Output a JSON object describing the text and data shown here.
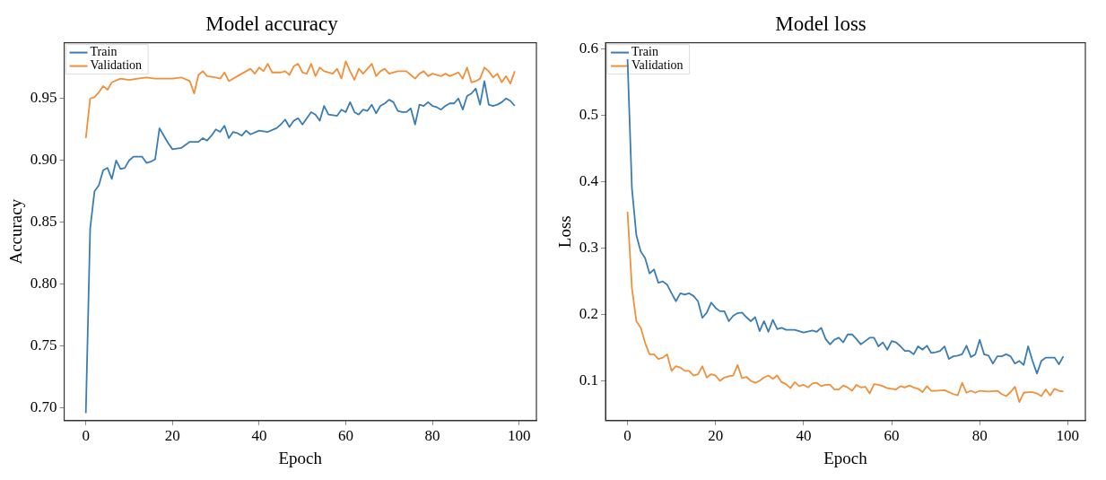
{
  "chart_data": [
    {
      "type": "line",
      "title": "Model accuracy",
      "xlabel": "Epoch",
      "ylabel": "Accuracy",
      "xlim": [
        -5,
        104
      ],
      "ylim": [
        0.69,
        0.995
      ],
      "xticks": [
        0,
        20,
        40,
        60,
        80,
        100
      ],
      "yticks": [
        {
          "value": 0.7,
          "label": "0.70"
        },
        {
          "value": 0.75,
          "label": "0.75"
        },
        {
          "value": 0.8,
          "label": "0.80"
        },
        {
          "value": 0.85,
          "label": "0.85"
        },
        {
          "value": 0.9,
          "label": "0.90"
        },
        {
          "value": 0.95,
          "label": "0.95"
        }
      ],
      "grid": false,
      "legend": "top left",
      "marker": "none",
      "line_style": "solid",
      "series": [
        {
          "name": "Train",
          "color": "#3a7db5",
          "x": [
            0,
            1,
            2,
            3,
            4,
            5,
            6,
            7,
            8,
            9,
            10,
            11,
            12,
            13,
            14,
            15,
            16,
            17,
            18,
            19,
            20,
            22,
            24,
            26,
            27,
            28,
            29,
            30,
            31,
            32,
            33,
            34,
            35,
            36,
            37,
            38,
            40,
            42,
            44,
            45,
            46,
            47,
            48,
            49,
            50,
            52,
            53,
            54,
            55,
            56,
            58,
            59,
            60,
            61,
            62,
            63,
            64,
            65,
            66,
            67,
            68,
            69,
            70,
            71,
            72,
            73,
            74,
            75,
            76,
            77,
            78,
            79,
            80,
            81,
            82,
            83,
            84,
            85,
            86,
            87,
            88,
            89,
            90,
            91,
            92,
            93,
            94,
            95,
            96,
            97,
            98,
            99
          ],
          "values": [
            0.696,
            0.845,
            0.875,
            0.88,
            0.892,
            0.894,
            0.885,
            0.9,
            0.893,
            0.894,
            0.9,
            0.903,
            0.903,
            0.903,
            0.898,
            0.899,
            0.901,
            0.926,
            0.92,
            0.914,
            0.909,
            0.91,
            0.915,
            0.915,
            0.918,
            0.916,
            0.92,
            0.925,
            0.923,
            0.928,
            0.918,
            0.923,
            0.922,
            0.92,
            0.924,
            0.921,
            0.924,
            0.923,
            0.926,
            0.929,
            0.933,
            0.927,
            0.932,
            0.934,
            0.929,
            0.939,
            0.937,
            0.932,
            0.944,
            0.937,
            0.936,
            0.941,
            0.939,
            0.947,
            0.939,
            0.937,
            0.941,
            0.94,
            0.945,
            0.938,
            0.944,
            0.946,
            0.949,
            0.947,
            0.94,
            0.939,
            0.939,
            0.942,
            0.929,
            0.945,
            0.944,
            0.947,
            0.944,
            0.943,
            0.941,
            0.944,
            0.946,
            0.946,
            0.95,
            0.941,
            0.952,
            0.954,
            0.958,
            0.945,
            0.964,
            0.945,
            0.944,
            0.945,
            0.947,
            0.95,
            0.948,
            0.944
          ]
        },
        {
          "name": "Validation",
          "color": "#f0903a",
          "x": [
            0,
            1,
            2,
            3,
            4,
            5,
            6,
            8,
            10,
            12,
            14,
            16,
            18,
            20,
            22,
            24,
            25,
            26,
            27,
            28,
            30,
            31,
            32,
            33,
            35,
            37,
            38,
            39,
            40,
            41,
            42,
            43,
            45,
            46,
            47,
            48,
            49,
            50,
            51,
            52,
            53,
            54,
            55,
            57,
            58,
            59,
            60,
            61,
            62,
            63,
            64,
            66,
            67,
            68,
            69,
            70,
            72,
            74,
            75,
            76,
            77,
            78,
            79,
            80,
            82,
            83,
            84,
            86,
            87,
            88,
            89,
            90,
            91,
            92,
            93,
            94,
            95,
            96,
            97,
            98,
            99
          ],
          "values": [
            0.918,
            0.95,
            0.951,
            0.955,
            0.96,
            0.957,
            0.963,
            0.966,
            0.965,
            0.966,
            0.967,
            0.966,
            0.966,
            0.966,
            0.967,
            0.964,
            0.954,
            0.969,
            0.972,
            0.968,
            0.967,
            0.966,
            0.971,
            0.964,
            0.968,
            0.972,
            0.974,
            0.97,
            0.975,
            0.972,
            0.978,
            0.971,
            0.971,
            0.972,
            0.969,
            0.976,
            0.978,
            0.971,
            0.97,
            0.978,
            0.968,
            0.975,
            0.972,
            0.97,
            0.974,
            0.966,
            0.98,
            0.972,
            0.965,
            0.974,
            0.97,
            0.978,
            0.968,
            0.972,
            0.974,
            0.97,
            0.972,
            0.972,
            0.969,
            0.966,
            0.97,
            0.972,
            0.968,
            0.97,
            0.968,
            0.97,
            0.968,
            0.971,
            0.966,
            0.975,
            0.963,
            0.964,
            0.966,
            0.975,
            0.972,
            0.967,
            0.97,
            0.963,
            0.968,
            0.962,
            0.972
          ]
        }
      ]
    },
    {
      "type": "line",
      "title": "Model loss",
      "xlabel": "Epoch",
      "ylabel": "Loss",
      "xlim": [
        -5,
        104
      ],
      "ylim": [
        0.04,
        0.61
      ],
      "xticks": [
        0,
        20,
        40,
        60,
        80,
        100
      ],
      "yticks": [
        0.1,
        0.2,
        0.3,
        0.4,
        0.5,
        0.6
      ],
      "grid": false,
      "legend": "top left",
      "marker": "none",
      "line_style": "solid",
      "series": [
        {
          "name": "Train",
          "color": "#3a7db5",
          "x": [
            0,
            1,
            2,
            3,
            4,
            5,
            6,
            7,
            8,
            9,
            10,
            11,
            12,
            13,
            14,
            15,
            16,
            17,
            18,
            19,
            20,
            21,
            22,
            23,
            24,
            25,
            26,
            27,
            28,
            29,
            30,
            31,
            32,
            33,
            34,
            35,
            36,
            38,
            40,
            42,
            43,
            44,
            45,
            46,
            47,
            48,
            49,
            50,
            51,
            52,
            53,
            54,
            55,
            56,
            57,
            58,
            59,
            60,
            61,
            62,
            63,
            64,
            65,
            66,
            67,
            68,
            69,
            70,
            71,
            72,
            73,
            74,
            75,
            76,
            77,
            78,
            79,
            80,
            81,
            82,
            83,
            84,
            85,
            86,
            87,
            88,
            89,
            90,
            91,
            92,
            93,
            94,
            95,
            96,
            97,
            98,
            99
          ],
          "values": [
            0.585,
            0.39,
            0.32,
            0.295,
            0.285,
            0.262,
            0.268,
            0.248,
            0.25,
            0.245,
            0.232,
            0.22,
            0.232,
            0.23,
            0.232,
            0.228,
            0.22,
            0.195,
            0.203,
            0.218,
            0.21,
            0.205,
            0.205,
            0.19,
            0.198,
            0.202,
            0.203,
            0.196,
            0.19,
            0.196,
            0.175,
            0.19,
            0.174,
            0.192,
            0.178,
            0.18,
            0.177,
            0.177,
            0.173,
            0.176,
            0.174,
            0.18,
            0.163,
            0.155,
            0.162,
            0.165,
            0.158,
            0.17,
            0.17,
            0.163,
            0.155,
            0.16,
            0.165,
            0.165,
            0.152,
            0.158,
            0.147,
            0.16,
            0.158,
            0.152,
            0.145,
            0.145,
            0.14,
            0.152,
            0.147,
            0.153,
            0.142,
            0.143,
            0.145,
            0.152,
            0.133,
            0.137,
            0.138,
            0.14,
            0.153,
            0.136,
            0.14,
            0.162,
            0.14,
            0.138,
            0.126,
            0.137,
            0.137,
            0.14,
            0.137,
            0.126,
            0.13,
            0.124,
            0.152,
            0.13,
            0.111,
            0.13,
            0.135,
            0.135,
            0.135,
            0.125,
            0.137
          ]
        },
        {
          "name": "Validation",
          "color": "#f0903a",
          "x": [
            0,
            1,
            2,
            3,
            4,
            5,
            6,
            7,
            8,
            9,
            10,
            11,
            12,
            13,
            14,
            15,
            16,
            17,
            18,
            19,
            20,
            21,
            22,
            23,
            24,
            25,
            26,
            27,
            28,
            29,
            30,
            31,
            32,
            33,
            34,
            35,
            36,
            37,
            38,
            39,
            40,
            41,
            42,
            43,
            44,
            45,
            46,
            47,
            48,
            49,
            50,
            51,
            52,
            53,
            54,
            55,
            56,
            57,
            58,
            59,
            60,
            61,
            62,
            63,
            64,
            65,
            66,
            67,
            68,
            69,
            70,
            72,
            74,
            75,
            76,
            77,
            78,
            79,
            80,
            82,
            84,
            85,
            86,
            87,
            88,
            89,
            90,
            91,
            92,
            93,
            94,
            95,
            96,
            97,
            98,
            99
          ],
          "values": [
            0.355,
            0.24,
            0.19,
            0.18,
            0.157,
            0.14,
            0.14,
            0.133,
            0.135,
            0.14,
            0.115,
            0.122,
            0.12,
            0.115,
            0.115,
            0.108,
            0.11,
            0.122,
            0.105,
            0.11,
            0.108,
            0.1,
            0.105,
            0.107,
            0.108,
            0.124,
            0.104,
            0.106,
            0.1,
            0.097,
            0.1,
            0.105,
            0.108,
            0.103,
            0.108,
            0.098,
            0.095,
            0.089,
            0.098,
            0.092,
            0.094,
            0.09,
            0.096,
            0.097,
            0.092,
            0.094,
            0.094,
            0.087,
            0.087,
            0.093,
            0.09,
            0.085,
            0.094,
            0.09,
            0.091,
            0.081,
            0.095,
            0.094,
            0.092,
            0.089,
            0.088,
            0.087,
            0.092,
            0.09,
            0.093,
            0.09,
            0.088,
            0.083,
            0.092,
            0.085,
            0.085,
            0.086,
            0.08,
            0.078,
            0.097,
            0.082,
            0.085,
            0.082,
            0.085,
            0.084,
            0.085,
            0.08,
            0.077,
            0.083,
            0.091,
            0.068,
            0.082,
            0.083,
            0.083,
            0.081,
            0.077,
            0.087,
            0.078,
            0.088,
            0.085,
            0.084
          ]
        }
      ]
    }
  ]
}
